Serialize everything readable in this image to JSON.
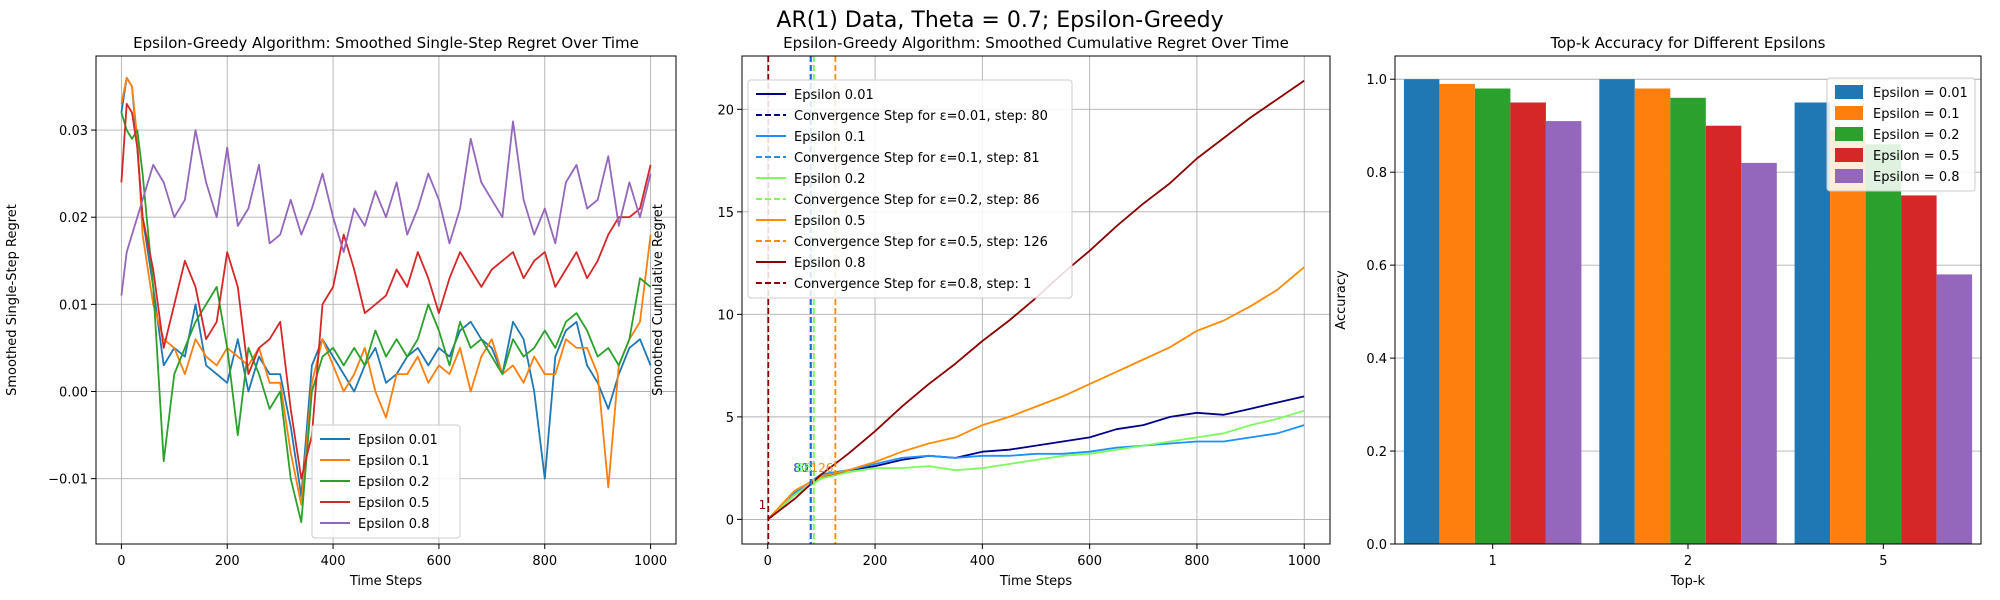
{
  "figure": {
    "suptitle": "AR(1) Data, Theta = 0.7; Epsilon-Greedy"
  },
  "colors": {
    "grid": "#b0b0b0",
    "axis": "#000000"
  },
  "chart_data": [
    {
      "type": "line",
      "title": "Epsilon-Greedy Algorithm: Smoothed Single-Step Regret Over Time",
      "xlabel": "Time Steps",
      "ylabel": "Smoothed Single-Step Regret",
      "xlim": [
        -48,
        1048
      ],
      "ylim": [
        -0.0175,
        0.0385
      ],
      "xticks": [
        0,
        200,
        400,
        600,
        800,
        1000
      ],
      "xtick_labels": [
        "0",
        "200",
        "400",
        "600",
        "800",
        "1000"
      ],
      "yticks": [
        -0.01,
        0.0,
        0.01,
        0.02,
        0.03
      ],
      "ytick_labels": [
        "−0.01",
        "0.00",
        "0.01",
        "0.02",
        "0.03"
      ],
      "grid": true,
      "legend_position": "lower-center",
      "series": [
        {
          "name": "Epsilon 0.01",
          "color": "#1f77b4",
          "x": [
            0,
            10,
            20,
            30,
            40,
            60,
            80,
            100,
            120,
            140,
            160,
            180,
            200,
            220,
            240,
            260,
            280,
            300,
            320,
            340,
            360,
            380,
            400,
            420,
            440,
            460,
            480,
            500,
            520,
            540,
            560,
            580,
            600,
            620,
            640,
            660,
            680,
            700,
            720,
            740,
            760,
            780,
            800,
            820,
            840,
            860,
            880,
            900,
            920,
            940,
            960,
            980,
            1000
          ],
          "y": [
            0.032,
            0.036,
            0.035,
            0.028,
            0.02,
            0.012,
            0.003,
            0.005,
            0.004,
            0.01,
            0.003,
            0.002,
            0.001,
            0.006,
            0.0,
            0.004,
            0.002,
            0.002,
            -0.004,
            -0.012,
            0.003,
            0.006,
            0.004,
            0.002,
            0.0,
            0.003,
            0.005,
            0.001,
            0.002,
            0.004,
            0.005,
            0.003,
            0.005,
            0.004,
            0.007,
            0.008,
            0.006,
            0.005,
            0.002,
            0.008,
            0.006,
            0.0,
            -0.01,
            0.004,
            0.007,
            0.008,
            0.003,
            0.001,
            -0.002,
            0.002,
            0.005,
            0.006,
            0.003
          ]
        },
        {
          "name": "Epsilon 0.1",
          "color": "#ff7f0e",
          "x": [
            0,
            10,
            20,
            30,
            40,
            60,
            80,
            100,
            120,
            140,
            160,
            180,
            200,
            220,
            240,
            260,
            280,
            300,
            320,
            340,
            360,
            380,
            400,
            420,
            440,
            460,
            480,
            500,
            520,
            540,
            560,
            580,
            600,
            620,
            640,
            660,
            680,
            700,
            720,
            740,
            760,
            780,
            800,
            820,
            840,
            860,
            880,
            900,
            920,
            940,
            960,
            980,
            1000
          ],
          "y": [
            0.033,
            0.036,
            0.035,
            0.029,
            0.018,
            0.01,
            0.006,
            0.005,
            0.002,
            0.006,
            0.004,
            0.003,
            0.005,
            0.004,
            0.003,
            0.005,
            0.001,
            0.001,
            -0.007,
            -0.013,
            0.001,
            0.006,
            0.003,
            0.0,
            0.002,
            0.005,
            0.0,
            -0.003,
            0.002,
            0.002,
            0.004,
            0.001,
            0.003,
            0.002,
            0.005,
            0.0,
            0.004,
            0.006,
            0.002,
            0.003,
            0.001,
            0.004,
            0.002,
            0.002,
            0.006,
            0.005,
            0.005,
            0.002,
            -0.011,
            0.003,
            0.006,
            0.008,
            0.018
          ]
        },
        {
          "name": "Epsilon 0.2",
          "color": "#2ca02c",
          "x": [
            0,
            10,
            20,
            30,
            40,
            60,
            80,
            100,
            120,
            140,
            160,
            180,
            200,
            220,
            240,
            260,
            280,
            300,
            320,
            340,
            360,
            380,
            400,
            420,
            440,
            460,
            480,
            500,
            520,
            540,
            560,
            580,
            600,
            620,
            640,
            660,
            680,
            700,
            720,
            740,
            760,
            780,
            800,
            820,
            840,
            860,
            880,
            900,
            920,
            940,
            960,
            980,
            1000
          ],
          "y": [
            0.032,
            0.03,
            0.029,
            0.03,
            0.025,
            0.012,
            -0.008,
            0.002,
            0.005,
            0.008,
            0.01,
            0.012,
            0.005,
            -0.005,
            0.005,
            0.002,
            -0.002,
            0.0,
            -0.01,
            -0.015,
            0.0,
            0.004,
            0.005,
            0.003,
            0.005,
            0.003,
            0.007,
            0.004,
            0.006,
            0.004,
            0.006,
            0.01,
            0.007,
            0.003,
            0.008,
            0.005,
            0.006,
            0.004,
            0.002,
            0.006,
            0.004,
            0.005,
            0.007,
            0.005,
            0.008,
            0.009,
            0.007,
            0.004,
            0.005,
            0.003,
            0.006,
            0.013,
            0.012
          ]
        },
        {
          "name": "Epsilon 0.5",
          "color": "#d62728",
          "x": [
            0,
            10,
            20,
            30,
            40,
            60,
            80,
            100,
            120,
            140,
            160,
            180,
            200,
            220,
            240,
            260,
            280,
            300,
            320,
            340,
            360,
            380,
            400,
            420,
            440,
            460,
            480,
            500,
            520,
            540,
            560,
            580,
            600,
            620,
            640,
            660,
            680,
            700,
            720,
            740,
            760,
            780,
            800,
            820,
            840,
            860,
            880,
            900,
            920,
            940,
            960,
            980,
            1000
          ],
          "y": [
            0.024,
            0.033,
            0.032,
            0.028,
            0.02,
            0.014,
            0.005,
            0.01,
            0.015,
            0.012,
            0.006,
            0.008,
            0.016,
            0.012,
            0.002,
            0.005,
            0.006,
            0.008,
            -0.002,
            -0.01,
            -0.005,
            0.01,
            0.012,
            0.018,
            0.014,
            0.009,
            0.01,
            0.011,
            0.014,
            0.012,
            0.016,
            0.013,
            0.009,
            0.013,
            0.016,
            0.014,
            0.012,
            0.014,
            0.015,
            0.016,
            0.013,
            0.015,
            0.016,
            0.012,
            0.014,
            0.016,
            0.013,
            0.015,
            0.018,
            0.02,
            0.02,
            0.021,
            0.026
          ]
        },
        {
          "name": "Epsilon 0.8",
          "color": "#9467bd",
          "x": [
            0,
            10,
            20,
            30,
            40,
            60,
            80,
            100,
            120,
            140,
            160,
            180,
            200,
            220,
            240,
            260,
            280,
            300,
            320,
            340,
            360,
            380,
            400,
            420,
            440,
            460,
            480,
            500,
            520,
            540,
            560,
            580,
            600,
            620,
            640,
            660,
            680,
            700,
            720,
            740,
            760,
            780,
            800,
            820,
            840,
            860,
            880,
            900,
            920,
            940,
            960,
            980,
            1000
          ],
          "y": [
            0.011,
            0.016,
            0.018,
            0.02,
            0.022,
            0.026,
            0.024,
            0.02,
            0.022,
            0.03,
            0.024,
            0.02,
            0.028,
            0.019,
            0.021,
            0.026,
            0.017,
            0.018,
            0.022,
            0.018,
            0.021,
            0.025,
            0.02,
            0.016,
            0.021,
            0.019,
            0.023,
            0.02,
            0.024,
            0.018,
            0.021,
            0.025,
            0.022,
            0.017,
            0.021,
            0.029,
            0.024,
            0.022,
            0.02,
            0.031,
            0.022,
            0.018,
            0.021,
            0.017,
            0.024,
            0.026,
            0.021,
            0.022,
            0.027,
            0.019,
            0.024,
            0.02,
            0.025
          ]
        }
      ]
    },
    {
      "type": "line",
      "title": "Epsilon-Greedy Algorithm: Smoothed Cumulative Regret Over Time",
      "xlabel": "Time Steps",
      "ylabel": "Smoothed Cumulative Regret",
      "xlim": [
        -48,
        1048
      ],
      "ylim": [
        -1.2,
        22.6
      ],
      "xticks": [
        0,
        200,
        400,
        600,
        800,
        1000
      ],
      "xtick_labels": [
        "0",
        "200",
        "400",
        "600",
        "800",
        "1000"
      ],
      "yticks": [
        0,
        5,
        10,
        15,
        20
      ],
      "ytick_labels": [
        "0",
        "5",
        "10",
        "15",
        "20"
      ],
      "grid": true,
      "legend_position": "upper-left",
      "series": [
        {
          "name": "Epsilon 0.01",
          "color": "#00008b",
          "x": [
            0,
            50,
            100,
            150,
            200,
            250,
            300,
            350,
            400,
            450,
            500,
            550,
            600,
            650,
            700,
            750,
            800,
            850,
            900,
            950,
            1000
          ],
          "y": [
            0,
            1.2,
            2.0,
            2.4,
            2.6,
            2.9,
            3.1,
            3.0,
            3.3,
            3.4,
            3.6,
            3.8,
            4.0,
            4.4,
            4.6,
            5.0,
            5.2,
            5.1,
            5.4,
            5.7,
            6.0
          ]
        },
        {
          "name": "Epsilon 0.1",
          "color": "#1e90ff",
          "x": [
            0,
            50,
            100,
            150,
            200,
            250,
            300,
            350,
            400,
            450,
            500,
            550,
            600,
            650,
            700,
            750,
            800,
            850,
            900,
            950,
            1000
          ],
          "y": [
            0,
            1.3,
            2.2,
            2.4,
            2.7,
            3.0,
            3.1,
            3.0,
            3.1,
            3.1,
            3.2,
            3.2,
            3.3,
            3.5,
            3.6,
            3.7,
            3.8,
            3.8,
            4.0,
            4.2,
            4.6
          ]
        },
        {
          "name": "Epsilon 0.2",
          "color": "#7cfc5a",
          "x": [
            0,
            50,
            100,
            150,
            200,
            250,
            300,
            350,
            400,
            450,
            500,
            550,
            600,
            650,
            700,
            750,
            800,
            850,
            900,
            950,
            1000
          ],
          "y": [
            0,
            1.2,
            2.0,
            2.3,
            2.5,
            2.5,
            2.6,
            2.4,
            2.5,
            2.7,
            2.9,
            3.1,
            3.2,
            3.4,
            3.6,
            3.8,
            4.0,
            4.2,
            4.6,
            4.9,
            5.3
          ]
        },
        {
          "name": "Epsilon 0.5",
          "color": "#ff8c00",
          "x": [
            0,
            50,
            100,
            150,
            200,
            250,
            300,
            350,
            400,
            450,
            500,
            550,
            600,
            650,
            700,
            750,
            800,
            850,
            900,
            950,
            1000
          ],
          "y": [
            0,
            1.4,
            2.1,
            2.4,
            2.8,
            3.3,
            3.7,
            4.0,
            4.6,
            5.0,
            5.5,
            6.0,
            6.6,
            7.2,
            7.8,
            8.4,
            9.2,
            9.7,
            10.4,
            11.2,
            12.3
          ]
        },
        {
          "name": "Epsilon 0.8",
          "color": "#8b0000",
          "x": [
            0,
            50,
            100,
            150,
            200,
            250,
            300,
            350,
            400,
            450,
            500,
            550,
            600,
            650,
            700,
            750,
            800,
            850,
            900,
            950,
            1000
          ],
          "y": [
            0,
            1.0,
            2.2,
            3.2,
            4.3,
            5.5,
            6.6,
            7.6,
            8.7,
            9.7,
            10.8,
            12.0,
            13.1,
            14.3,
            15.4,
            16.4,
            17.6,
            18.6,
            19.6,
            20.5,
            21.4
          ]
        }
      ],
      "vlines": [
        {
          "name": "Convergence Step for ε=0.01, step: 80",
          "x": 80,
          "color": "#00008b",
          "label": "80"
        },
        {
          "name": "Convergence Step for ε=0.1, step: 81",
          "x": 81,
          "color": "#1e90ff",
          "label": "81"
        },
        {
          "name": "Convergence Step for ε=0.2, step: 86",
          "x": 86,
          "color": "#7cfc5a",
          "label": "86"
        },
        {
          "name": "Convergence Step for ε=0.5, step: 126",
          "x": 126,
          "color": "#ff8c00",
          "label": "126"
        },
        {
          "name": "Convergence Step for ε=0.8, step: 1",
          "x": 1,
          "color": "#8b0000",
          "label": "1"
        }
      ]
    },
    {
      "type": "bar",
      "title": "Top-k Accuracy for Different Epsilons",
      "xlabel": "Top-k",
      "ylabel": "Accuracy",
      "categories": [
        "1",
        "2",
        "5"
      ],
      "ylim": [
        0,
        1.05
      ],
      "yticks": [
        0.0,
        0.2,
        0.4,
        0.6,
        0.8,
        1.0
      ],
      "ytick_labels": [
        "0.0",
        "0.2",
        "0.4",
        "0.6",
        "0.8",
        "1.0"
      ],
      "grid": true,
      "legend_position": "upper-right",
      "series": [
        {
          "name": "Epsilon = 0.01",
          "color": "#1f77b4",
          "values": [
            1.0,
            1.0,
            0.95
          ]
        },
        {
          "name": "Epsilon = 0.1",
          "color": "#ff7f0e",
          "values": [
            0.99,
            0.98,
            0.89
          ]
        },
        {
          "name": "Epsilon = 0.2",
          "color": "#2ca02c",
          "values": [
            0.98,
            0.96,
            0.86
          ]
        },
        {
          "name": "Epsilon = 0.5",
          "color": "#d62728",
          "values": [
            0.95,
            0.9,
            0.75
          ]
        },
        {
          "name": "Epsilon = 0.8",
          "color": "#9467bd",
          "values": [
            0.91,
            0.82,
            0.58
          ]
        }
      ]
    }
  ]
}
